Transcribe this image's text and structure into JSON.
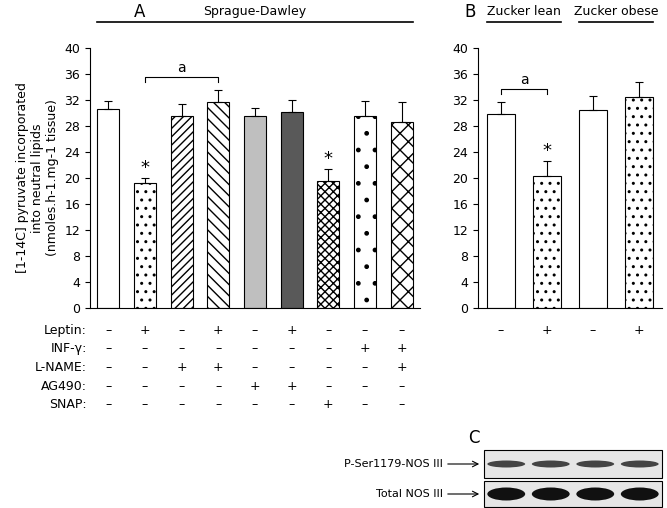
{
  "chart_data": [
    {
      "type": "bar",
      "panel": "A",
      "groups": [
        {
          "label": "Sprague-Dawley",
          "from": 0,
          "to": 8
        }
      ],
      "ylabel": "[1-14C] pyruvate incorporated\ninto neutral lipids\n(nmoles.h-1.mg-1 tissue)",
      "categories": [
        null,
        null,
        null,
        null,
        null,
        null,
        null,
        null,
        null
      ],
      "values": [
        30.6,
        19.2,
        29.6,
        31.7,
        29.6,
        30.2,
        19.6,
        29.6,
        28.6
      ],
      "errors": [
        1.2,
        0.8,
        1.8,
        1.9,
        1.2,
        1.8,
        1.8,
        2.3,
        3.1
      ],
      "colors": [
        "#ffffff",
        "#ffffff",
        "#ffffff",
        "#ffffff",
        "#bfbfbf",
        "#595959",
        "#ffffff",
        "#ffffff",
        "#ffffff"
      ],
      "significance": [
        null,
        "*",
        null,
        null,
        null,
        null,
        "*",
        null,
        null
      ],
      "brackets": [
        {
          "from": 1,
          "to": 3,
          "label": "a"
        }
      ],
      "treatments": [
        {
          "name": "Leptin:",
          "marks": [
            "–",
            "+",
            "–",
            "+",
            "–",
            "+",
            "–",
            "–",
            "–"
          ]
        },
        {
          "name": "INF-γ:",
          "marks": [
            "–",
            "–",
            "–",
            "–",
            "–",
            "–",
            "–",
            "+",
            "+"
          ]
        },
        {
          "name": "L-NAME:",
          "marks": [
            "–",
            "–",
            "+",
            "+",
            "–",
            "–",
            "–",
            "–",
            "+"
          ]
        },
        {
          "name": "AG490:",
          "marks": [
            "–",
            "–",
            "–",
            "–",
            "+",
            "+",
            "–",
            "–",
            "–"
          ]
        },
        {
          "name": "SNAP:",
          "marks": [
            "–",
            "–",
            "–",
            "–",
            "–",
            "–",
            "+",
            "–",
            "–"
          ]
        }
      ],
      "ylim": [
        0,
        40
      ],
      "yticks": [
        0,
        4,
        8,
        12,
        16,
        20,
        24,
        28,
        32,
        36,
        40
      ]
    },
    {
      "type": "bar",
      "panel": "B",
      "groups": [
        {
          "label": "Zucker lean",
          "from": 0,
          "to": 1
        },
        {
          "label": "Zucker obese",
          "from": 2,
          "to": 3
        }
      ],
      "categories": [
        null,
        null,
        null,
        null
      ],
      "values": [
        29.8,
        20.3,
        30.4,
        32.4
      ],
      "errors": [
        1.9,
        2.3,
        2.2,
        2.3
      ],
      "colors": [
        "#ffffff",
        "#ffffff",
        "#ffffff",
        "#ffffff"
      ],
      "significance": [
        null,
        "*",
        null,
        null
      ],
      "brackets": [
        {
          "from": 0,
          "to": 1,
          "label": "a"
        }
      ],
      "treatment_marks": [
        [
          "–",
          "+",
          "–",
          "+"
        ]
      ],
      "ylim": [
        0,
        40
      ],
      "yticks": [
        0,
        4,
        8,
        12,
        16,
        20,
        24,
        28,
        32,
        36,
        40
      ]
    }
  ],
  "blot": {
    "panel": "C",
    "bands": [
      "P-Ser1179-NOS III",
      "Total NOS III"
    ]
  }
}
